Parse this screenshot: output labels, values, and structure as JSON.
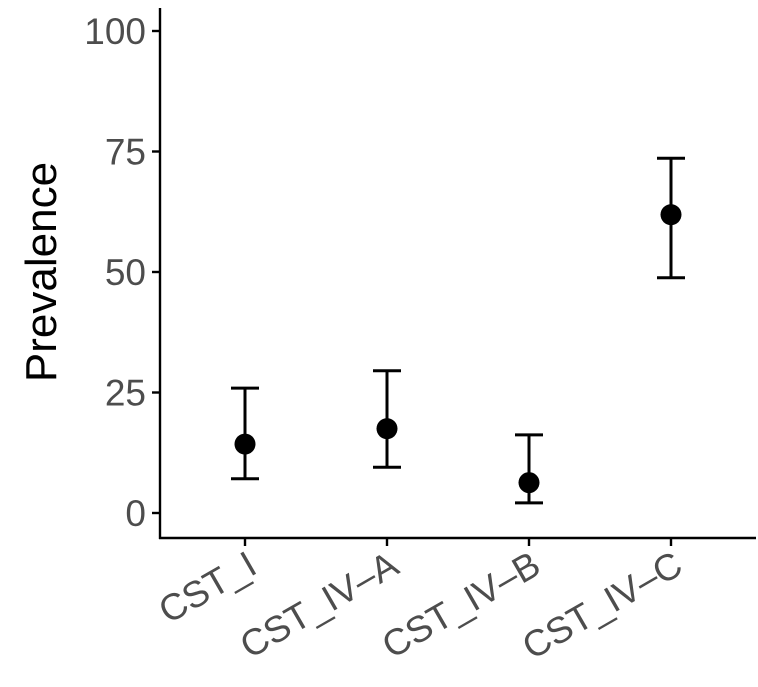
{
  "chart_data": {
    "type": "scatter",
    "title": "",
    "xlabel": "",
    "ylabel": "Prevalence",
    "ylim": [
      -5,
      105
    ],
    "yticks": [
      0,
      25,
      50,
      75,
      100
    ],
    "grid": false,
    "legend": "none",
    "categories": [
      "CST_I",
      "CST_IV–A",
      "CST_IV–B",
      "CST_IV–C"
    ],
    "series": [
      {
        "values": [
          14.3,
          17.5,
          6.3,
          61.9
        ],
        "lower": [
          7.1,
          9.5,
          2.1,
          48.8
        ],
        "upper": [
          25.9,
          29.5,
          16.2,
          73.6
        ]
      }
    ],
    "colors": {
      "point": "#000000",
      "errorbar": "#000000",
      "axis": "#000000",
      "tick_text": "#4d4d4d"
    }
  }
}
